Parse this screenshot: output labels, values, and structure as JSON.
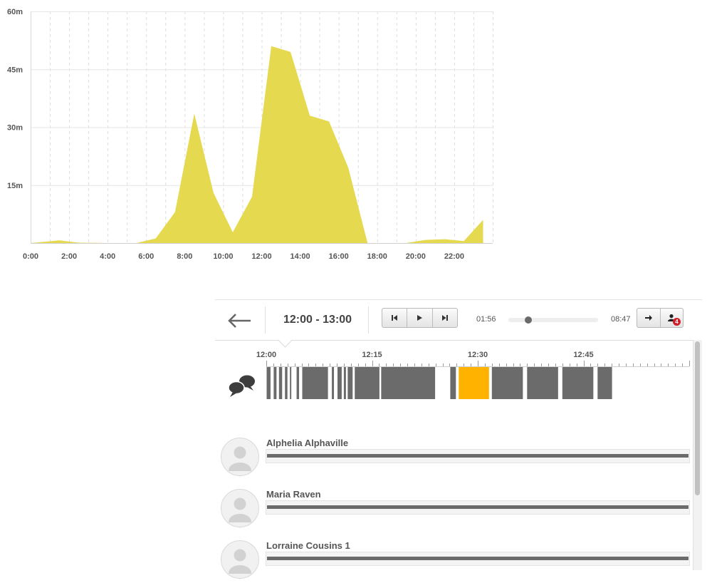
{
  "chart_data": {
    "type": "area",
    "color": "#e5d94f",
    "x_ticks": [
      "0:00",
      "2:00",
      "4:00",
      "6:00",
      "8:00",
      "10:00",
      "12:00",
      "14:00",
      "16:00",
      "18:00",
      "20:00",
      "22:00"
    ],
    "y_ticks": [
      "15m",
      "30m",
      "45m",
      "60m"
    ],
    "ylim": [
      0,
      60
    ],
    "xlim": [
      0,
      24
    ],
    "grid": true,
    "series": [
      {
        "x": [
          0,
          1.5,
          2.5,
          4,
          5.5,
          6.5,
          7.5,
          8.5,
          9.5,
          10.5,
          11.5,
          12.5,
          13.5,
          14.5,
          15.5,
          16.5,
          17.5,
          18.5,
          19.5,
          20.5,
          21.5,
          22.5,
          23.5
        ],
        "values": [
          0,
          0.7,
          0.1,
          0,
          0,
          1.2,
          8,
          33.5,
          13,
          2.8,
          12,
          51,
          49.5,
          33,
          31.5,
          19.5,
          0,
          0,
          0,
          0.8,
          1,
          0.5,
          6
        ]
      }
    ]
  },
  "toolbar": {
    "range_title": "12:00 - 13:00",
    "time_elapsed": "01:56",
    "time_total": "08:47",
    "progress": 0.22,
    "participants_badge": "4",
    "icons": {
      "back": "back-arrow-icon",
      "prev": "skip-back-icon",
      "play": "play-icon",
      "next": "skip-forward-icon",
      "forward": "arrow-right-icon",
      "participants": "user-icon"
    }
  },
  "timeline": {
    "tick_labels": [
      "12:00",
      "12:15",
      "12:30",
      "12:45"
    ],
    "segment_color": "#6b6b6b",
    "highlight_color": "#ffb300",
    "segments_minutes": [
      [
        0.05,
        0.6
      ],
      [
        1.05,
        1.45
      ],
      [
        1.8,
        2.25
      ],
      [
        2.65,
        3.0
      ],
      [
        3.35,
        3.55
      ],
      [
        4.3,
        4.65
      ],
      [
        5.1,
        8.75
      ],
      [
        9.3,
        9.6
      ],
      [
        10.1,
        10.7
      ],
      [
        11.0,
        11.3
      ],
      [
        11.55,
        12.25
      ],
      [
        12.55,
        16.05
      ],
      [
        16.3,
        23.95
      ],
      [
        26.1,
        26.9
      ],
      [
        27.3,
        31.6
      ],
      [
        32.0,
        36.4
      ],
      [
        37.0,
        41.4
      ],
      [
        42.0,
        46.4
      ],
      [
        47.0,
        49.05
      ]
    ],
    "highlight_minutes": [
      27.3,
      31.6
    ]
  },
  "participants": [
    {
      "name": "Alphelia Alphaville",
      "fraction": 1.0
    },
    {
      "name": "Maria Raven",
      "fraction": 1.0
    },
    {
      "name": "Lorraine Cousins 1",
      "fraction": 1.0
    }
  ]
}
